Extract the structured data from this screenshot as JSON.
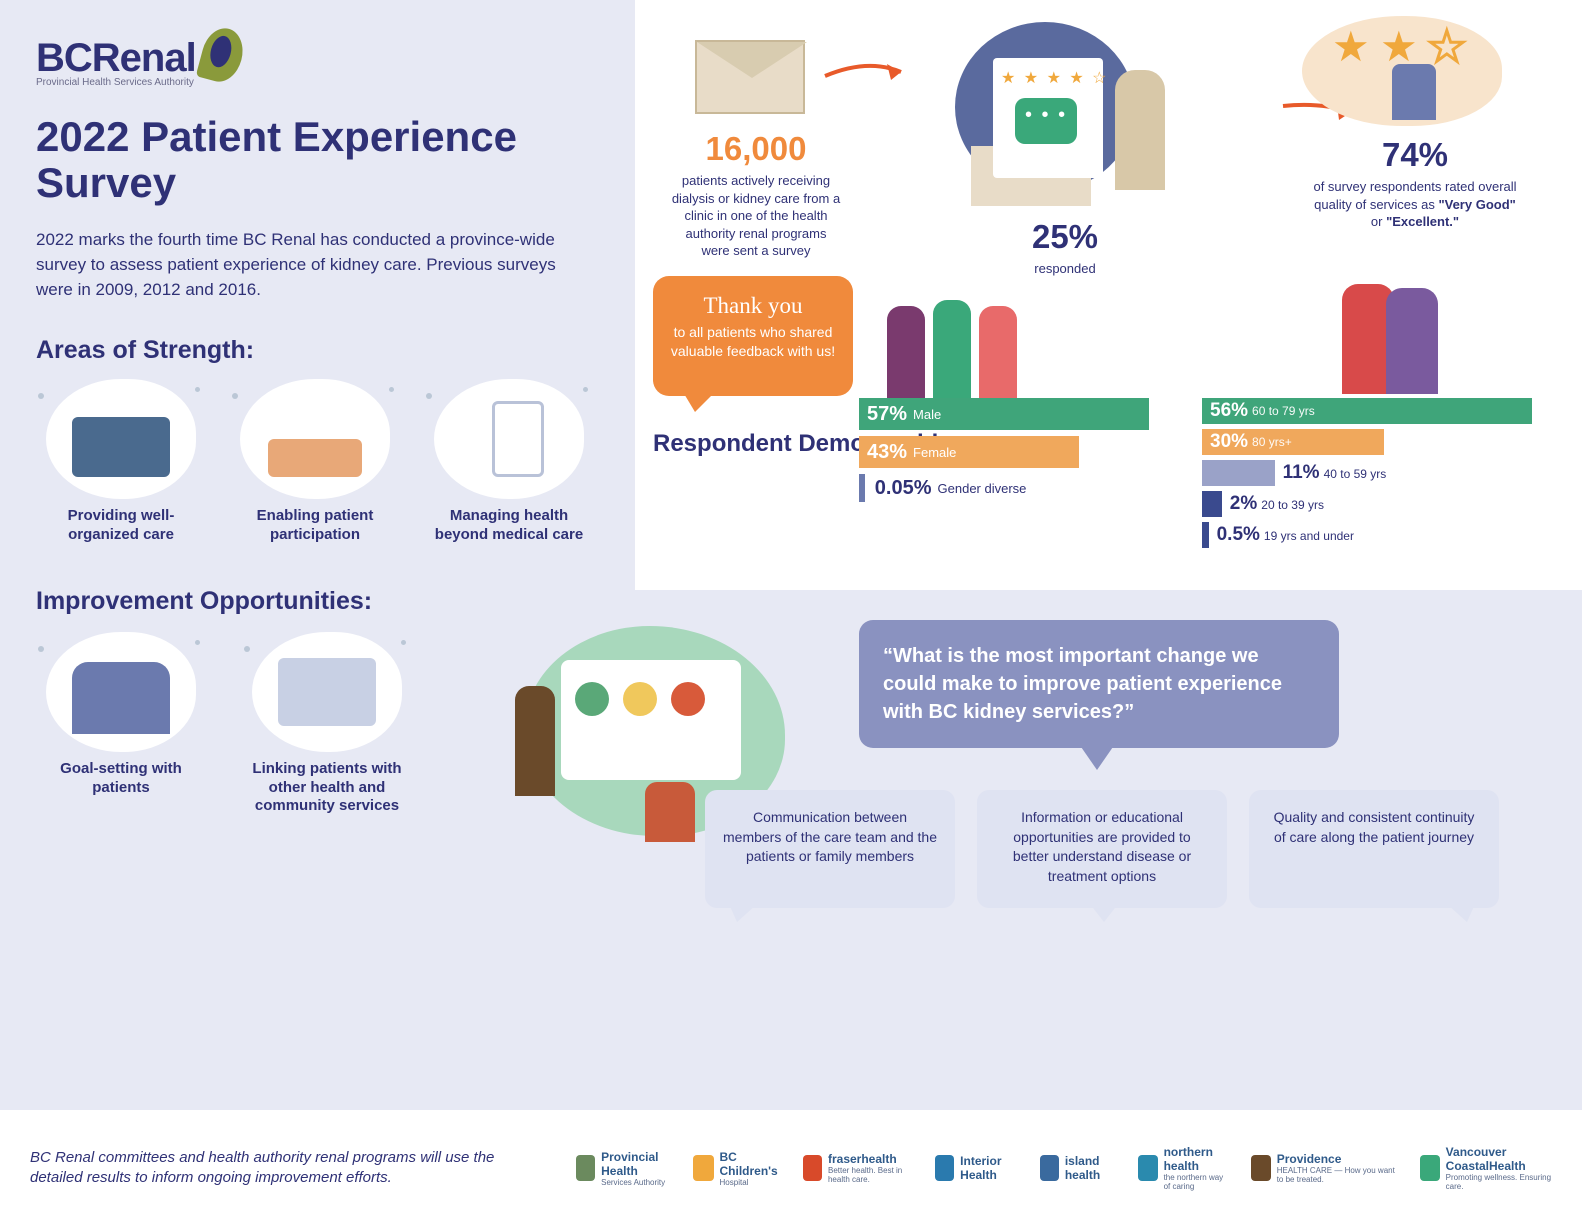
{
  "header": {
    "logo_main": "BCRenal",
    "logo_sub": "Provincial Health Services Authority",
    "title": "2022 Patient Experience Survey",
    "intro": "2022 marks the fourth time BC Renal has conducted a province-wide survey to assess patient experience of kidney care. Previous surveys were in 2009, 2012 and 2016."
  },
  "strengths": {
    "heading": "Areas of Strength:",
    "items": [
      "Providing well-organized care",
      "Enabling patient participation",
      "Managing health beyond medical care"
    ]
  },
  "improvements": {
    "heading": "Improvement Opportunities:",
    "items": [
      "Goal-setting with patients",
      "Linking patients with other health and community services"
    ]
  },
  "stats": {
    "sent": {
      "value": "16,000",
      "text": "patients actively receiving dialysis or kidney care from a clinic in one of the health authority renal programs were sent a survey",
      "color": "#f08a3c"
    },
    "responded": {
      "value": "25%",
      "text": "responded",
      "color": "#2f3176"
    },
    "quality": {
      "value": "74%",
      "text_pre": "of survey respondents rated overall quality of services as ",
      "q1": "\"Very Good\"",
      "mid": " or ",
      "q2": "\"Excellent.\"",
      "color": "#2f3176"
    }
  },
  "thank_you": {
    "lead": "Thank you",
    "body": "to all patients who shared valuable feedback with us!"
  },
  "demographics": {
    "heading": "Respondent Demographics:",
    "gender": [
      {
        "pct": "57%",
        "label": "Male",
        "width": "100%",
        "cls": "green"
      },
      {
        "pct": "43%",
        "label": "Female",
        "width": "76%",
        "cls": "orange"
      },
      {
        "pct": "0.05%",
        "label": "Gender diverse",
        "width": "2%",
        "cls": "tiny"
      }
    ],
    "age": [
      {
        "pct": "56%",
        "label": "60 to 79 yrs",
        "width": "100%",
        "cls": "green",
        "txt_in": true
      },
      {
        "pct": "30%",
        "label": "80 yrs+",
        "width": "55%",
        "cls": "orange",
        "txt_in": true
      },
      {
        "pct": "11%",
        "label": "40 to 59 yrs",
        "width": "22%",
        "cls": "purple",
        "txt_in": false
      },
      {
        "pct": "2%",
        "label": "20 to 39 yrs",
        "width": "6%",
        "cls": "dpurple",
        "txt_in": false
      },
      {
        "pct": "0.5%",
        "label": "19 yrs and under",
        "width": "2%",
        "cls": "dpurple",
        "txt_in": false
      }
    ]
  },
  "quote": "“What is the most important change we could make to improve patient experience with BC kidney services?”",
  "responses": [
    "Communication between members of the care team and the patients or family members",
    "Information or educational opportunities are provided to better understand disease or treatment options",
    "Quality and consistent continuity of care along the patient journey"
  ],
  "footer": {
    "text": "BC Renal committees and health authority renal programs will use the detailed results to inform ongoing improvement efforts.",
    "partners": [
      {
        "nm": "Provincial Health",
        "sub": "Services Authority",
        "cls": "l-phsa"
      },
      {
        "nm": "BC Children's",
        "sub": "Hospital",
        "cls": "l-bcch"
      },
      {
        "nm": "fraserhealth",
        "sub": "Better health. Best in health care.",
        "cls": "l-fh"
      },
      {
        "nm": "Interior Health",
        "sub": "",
        "cls": "l-ih"
      },
      {
        "nm": "island health",
        "sub": "",
        "cls": "l-ish"
      },
      {
        "nm": "northern health",
        "sub": "the northern way of caring",
        "cls": "l-nh"
      },
      {
        "nm": "Providence",
        "sub": "HEALTH CARE — How you want to be treated.",
        "cls": "l-prov"
      },
      {
        "nm": "Vancouver CoastalHealth",
        "sub": "Promoting wellness. Ensuring care.",
        "cls": "l-vch"
      }
    ]
  },
  "colors": {
    "bg_lav": "#e7e9f4",
    "navy": "#2f3176",
    "orange": "#f08a3c",
    "green": "#3fa57a",
    "orange2": "#f0a85c",
    "lilac": "#8a92c0",
    "pale": "#dfe3f2"
  }
}
